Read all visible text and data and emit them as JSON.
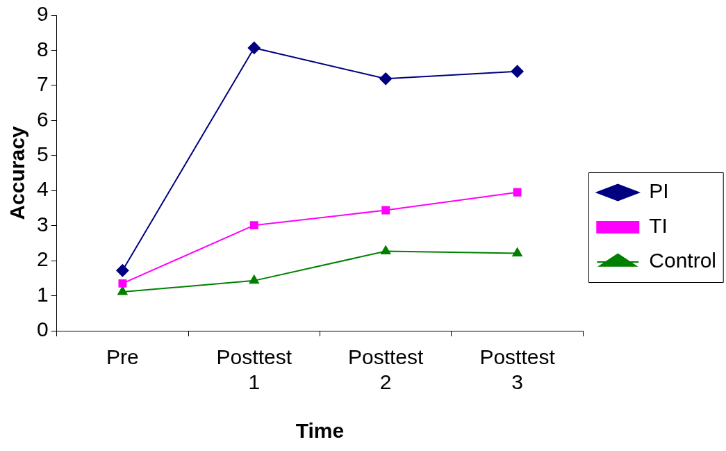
{
  "chart_data": {
    "type": "line",
    "xlabel": "Time",
    "ylabel": "Accuracy",
    "categories": [
      "Pre",
      "Posttest 1",
      "Posttest 2",
      "Posttest 3"
    ],
    "series": [
      {
        "name": "PI",
        "color": "#000080",
        "marker": "diamond",
        "values": [
          1.72,
          8.07,
          7.19,
          7.4
        ]
      },
      {
        "name": "TI",
        "color": "#ff00ff",
        "marker": "square",
        "values": [
          1.35,
          3.01,
          3.44,
          3.95
        ]
      },
      {
        "name": "Control",
        "color": "#008000",
        "marker": "triangle",
        "values": [
          1.11,
          1.43,
          2.27,
          2.21
        ]
      }
    ],
    "ylim": [
      0,
      9
    ],
    "yticks": [
      0,
      1,
      2,
      3,
      4,
      5,
      6,
      7,
      8,
      9
    ],
    "grid": false,
    "legend": "right",
    "line_style": "solid"
  }
}
